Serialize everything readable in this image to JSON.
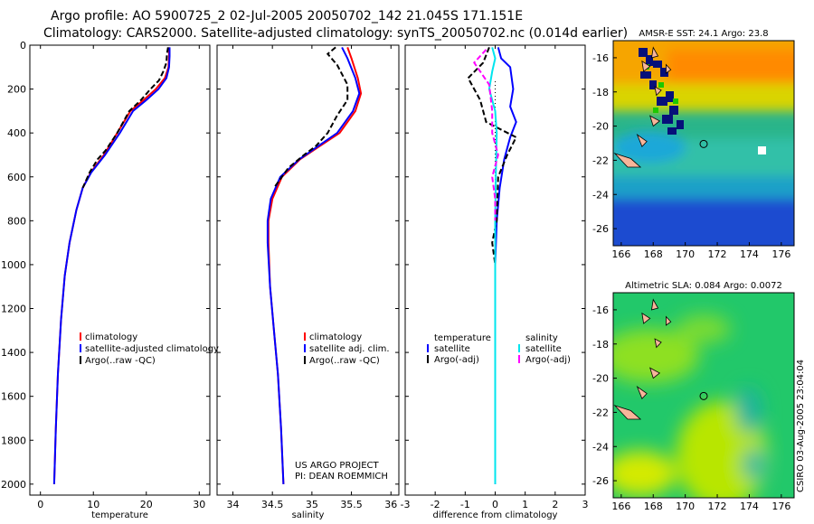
{
  "title_line1": "Argo profile: AO 5900725_2 02-Jul-2005 20050702_142 21.045S 171.151E",
  "title_line2": "Climatology: CARS2000. Satellite-adjusted climatology: synTS_20050702.nc (0.014d earlier)",
  "credit": "CSIRO 03-Aug-2005 23:04:04",
  "chart_data": [
    {
      "type": "line",
      "name": "temperature profile",
      "xlabel": "temperature",
      "xlim": [
        -2,
        32
      ],
      "ylim": [
        2050,
        0
      ],
      "xticks": [
        0,
        10,
        20,
        30
      ],
      "yticks": [
        0,
        200,
        400,
        600,
        800,
        1000,
        1200,
        1400,
        1600,
        1800,
        2000
      ],
      "legend": [
        "climatology",
        "satellite-adjusted climatology",
        "Argo(..raw -QC)"
      ],
      "series": [
        {
          "name": "climatology",
          "color": "#ff0000",
          "style": "solid",
          "points": [
            [
              24.3,
              10
            ],
            [
              24.3,
              50
            ],
            [
              24.2,
              100
            ],
            [
              23.5,
              150
            ],
            [
              21.8,
              200
            ],
            [
              19.5,
              250
            ],
            [
              17,
              300
            ],
            [
              14.5,
              400
            ],
            [
              12,
              500
            ],
            [
              9.5,
              580
            ],
            [
              8,
              650
            ],
            [
              6.8,
              750
            ],
            [
              5.5,
              900
            ],
            [
              4.6,
              1050
            ],
            [
              3.9,
              1250
            ],
            [
              3.3,
              1500
            ],
            [
              2.9,
              1750
            ],
            [
              2.6,
              2000
            ]
          ]
        },
        {
          "name": "satellite-adjusted climatology",
          "color": "#0000ff",
          "style": "solid",
          "points": [
            [
              24.4,
              10
            ],
            [
              24.4,
              50
            ],
            [
              24.3,
              100
            ],
            [
              23.8,
              150
            ],
            [
              22.3,
              200
            ],
            [
              20,
              250
            ],
            [
              17.5,
              300
            ],
            [
              15,
              400
            ],
            [
              12.2,
              500
            ],
            [
              9.6,
              580
            ],
            [
              8,
              650
            ],
            [
              6.8,
              750
            ],
            [
              5.5,
              900
            ],
            [
              4.6,
              1050
            ],
            [
              3.9,
              1250
            ],
            [
              3.3,
              1500
            ],
            [
              2.9,
              1750
            ],
            [
              2.6,
              2000
            ]
          ]
        },
        {
          "name": "Argo(..raw -QC)",
          "color": "#000000",
          "style": "dash",
          "points": [
            [
              24.1,
              10
            ],
            [
              23.9,
              40
            ],
            [
              23.8,
              80
            ],
            [
              23.2,
              120
            ],
            [
              22.4,
              160
            ],
            [
              20.8,
              200
            ],
            [
              19,
              250
            ],
            [
              16.8,
              300
            ],
            [
              14.5,
              400
            ],
            [
              12.3,
              480
            ],
            [
              10.8,
              520
            ],
            [
              9.3,
              580
            ],
            [
              8,
              650
            ]
          ]
        }
      ]
    },
    {
      "type": "line",
      "name": "salinity profile",
      "xlabel": "salinity",
      "xlim": [
        33.8,
        36.1
      ],
      "ylim": [
        2050,
        0
      ],
      "xticks": [
        34,
        34.5,
        35,
        35.5,
        36
      ],
      "legend": [
        "climatology",
        "satellite adj. clim.",
        "Argo(..raw -QC)"
      ],
      "annotation": [
        "US ARGO PROJECT",
        "PI: DEAN ROEMMICH"
      ],
      "series": [
        {
          "name": "climatology",
          "color": "#ff0000",
          "style": "solid",
          "points": [
            [
              35.45,
              10
            ],
            [
              35.5,
              60
            ],
            [
              35.58,
              150
            ],
            [
              35.62,
              220
            ],
            [
              35.55,
              300
            ],
            [
              35.35,
              400
            ],
            [
              35.1,
              460
            ],
            [
              34.85,
              520
            ],
            [
              34.62,
              600
            ],
            [
              34.5,
              700
            ],
            [
              34.45,
              800
            ],
            [
              34.45,
              900
            ],
            [
              34.47,
              1100
            ],
            [
              34.52,
              1300
            ],
            [
              34.57,
              1500
            ],
            [
              34.61,
              1750
            ],
            [
              34.64,
              2000
            ]
          ]
        },
        {
          "name": "satellite adj. clim.",
          "color": "#0000ff",
          "style": "solid",
          "points": [
            [
              35.38,
              10
            ],
            [
              35.45,
              60
            ],
            [
              35.55,
              150
            ],
            [
              35.6,
              220
            ],
            [
              35.52,
              300
            ],
            [
              35.32,
              400
            ],
            [
              35.08,
              460
            ],
            [
              34.84,
              520
            ],
            [
              34.6,
              600
            ],
            [
              34.48,
              700
            ],
            [
              34.44,
              800
            ],
            [
              34.44,
              900
            ],
            [
              34.47,
              1100
            ],
            [
              34.52,
              1300
            ],
            [
              34.57,
              1500
            ],
            [
              34.61,
              1750
            ],
            [
              34.64,
              2000
            ]
          ]
        },
        {
          "name": "Argo(..raw -QC)",
          "color": "#000000",
          "style": "dash",
          "points": [
            [
              35.3,
              10
            ],
            [
              35.2,
              40
            ],
            [
              35.32,
              90
            ],
            [
              35.45,
              180
            ],
            [
              35.45,
              250
            ],
            [
              35.32,
              320
            ],
            [
              35.2,
              400
            ],
            [
              35.05,
              460
            ],
            [
              34.9,
              500
            ],
            [
              34.7,
              560
            ],
            [
              34.52,
              650
            ]
          ]
        }
      ]
    },
    {
      "type": "line",
      "name": "difference from climatology",
      "xlabel": "difference from climatology",
      "xlim": [
        -3,
        3
      ],
      "ylim": [
        2050,
        0
      ],
      "xticks": [
        -3,
        -2,
        -1,
        0,
        1,
        2,
        3
      ],
      "legend_left": [
        "temperature",
        "satellite",
        "Argo(-adj)"
      ],
      "legend_right": [
        "salinity",
        "satellite",
        "Argo(-adj)"
      ],
      "series": [
        {
          "name": "temperature satellite",
          "color": "#0000ff",
          "style": "solid",
          "points": [
            [
              0.1,
              10
            ],
            [
              0.2,
              60
            ],
            [
              0.5,
              100
            ],
            [
              0.6,
              200
            ],
            [
              0.5,
              280
            ],
            [
              0.7,
              350
            ],
            [
              0.5,
              420
            ],
            [
              0.3,
              520
            ],
            [
              0.15,
              650
            ],
            [
              0.05,
              800
            ],
            [
              0,
              1000
            ],
            [
              0,
              2000
            ]
          ]
        },
        {
          "name": "temperature Argo(-adj)",
          "color": "#000000",
          "style": "dash",
          "points": [
            [
              -0.2,
              10
            ],
            [
              -0.4,
              80
            ],
            [
              -0.9,
              150
            ],
            [
              -0.5,
              250
            ],
            [
              -0.3,
              350
            ],
            [
              0.7,
              420
            ],
            [
              0.4,
              500
            ],
            [
              0.1,
              600
            ],
            [
              0.05,
              800
            ],
            [
              -0.1,
              900
            ],
            [
              0,
              1000
            ],
            [
              0,
              1050
            ]
          ]
        },
        {
          "name": "salinity satellite",
          "color": "#00e5ee",
          "style": "solid",
          "points": [
            [
              -0.1,
              10
            ],
            [
              0,
              60
            ],
            [
              -0.1,
              120
            ],
            [
              -0.2,
              200
            ],
            [
              0,
              300
            ],
            [
              0.05,
              400
            ],
            [
              0.02,
              600
            ],
            [
              0,
              800
            ],
            [
              0,
              1000
            ],
            [
              0,
              2000
            ]
          ]
        },
        {
          "name": "salinity Argo(-adj)",
          "color": "#ff00ff",
          "style": "dash",
          "points": [
            [
              -0.3,
              20
            ],
            [
              -0.7,
              80
            ],
            [
              -0.2,
              180
            ],
            [
              -0.1,
              300
            ],
            [
              -0.1,
              400
            ],
            [
              0.1,
              500
            ],
            [
              -0.1,
              600
            ],
            [
              0,
              700
            ],
            [
              0,
              800
            ]
          ]
        }
      ]
    },
    {
      "type": "heatmap",
      "name": "AMSR-E SST map",
      "title": "AMSR-E SST: 24.1  Argo: 23.8",
      "xlim": [
        165.5,
        176.8
      ],
      "ylim": [
        -27,
        -15
      ],
      "xticks": [
        166,
        168,
        170,
        172,
        174,
        176
      ],
      "yticks": [
        -16,
        -18,
        -20,
        -22,
        -24,
        -26
      ],
      "profile_location": [
        171.151,
        -21.045
      ]
    },
    {
      "type": "heatmap",
      "name": "Altimetric SLA map",
      "title": "Altimetric SLA: 0.084  Argo: 0.0072",
      "xlim": [
        165.5,
        176.8
      ],
      "ylim": [
        -27,
        -15
      ],
      "xticks": [
        166,
        168,
        170,
        172,
        174,
        176
      ],
      "yticks": [
        -16,
        -18,
        -20,
        -22,
        -24,
        -26
      ],
      "profile_location": [
        171.151,
        -21.045
      ]
    }
  ]
}
